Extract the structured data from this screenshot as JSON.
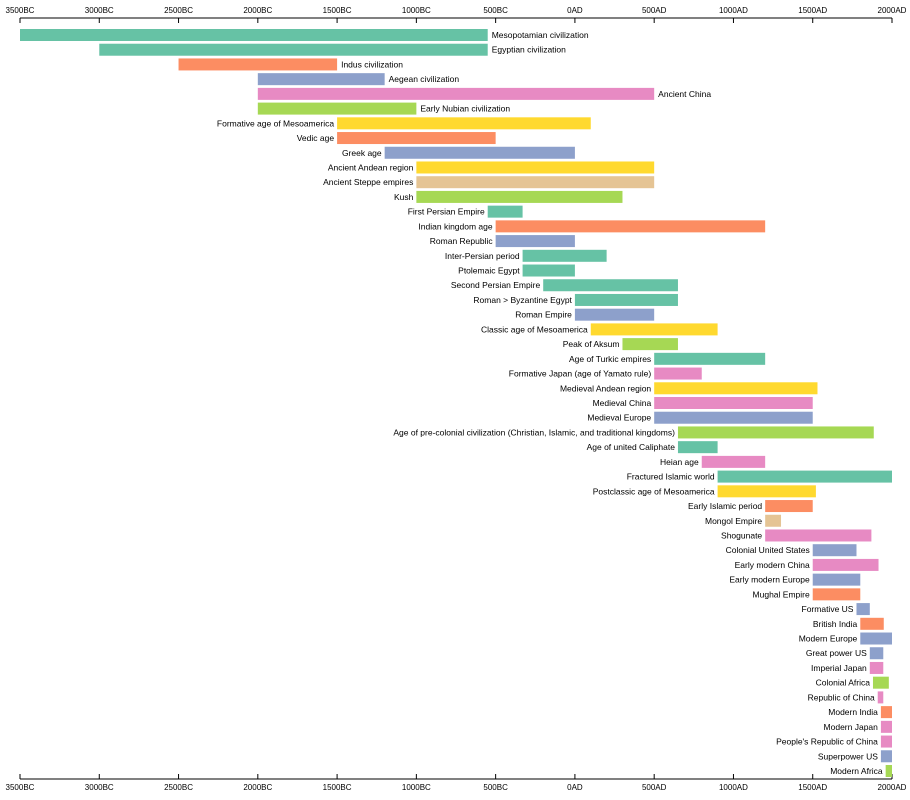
{
  "chart_data": {
    "type": "timeline",
    "title": "",
    "xlim": [
      -3500,
      2000
    ],
    "tick_values": [
      -3500,
      -3000,
      -2500,
      -2000,
      -1500,
      -1000,
      -500,
      0,
      500,
      1000,
      1500,
      2000
    ],
    "tick_labels": [
      "3500BC",
      "3000BC",
      "2500BC",
      "2000BC",
      "1500BC",
      "1000BC",
      "500BC",
      "0AD",
      "500AD",
      "1000AD",
      "1500AD",
      "2000AD"
    ],
    "colors": {
      "teal": "#66c2a5",
      "orange": "#fc8d62",
      "blue": "#8da0cb",
      "pink": "#e78ac3",
      "green": "#a6d854",
      "yellow": "#ffd92f",
      "tan": "#e5c494"
    },
    "events": [
      {
        "name": "Mesopotamian civilization",
        "start": -3500,
        "end": -550,
        "color": "teal"
      },
      {
        "name": "Egyptian civilization",
        "start": -3000,
        "end": -550,
        "color": "teal"
      },
      {
        "name": "Indus civilization",
        "start": -2500,
        "end": -1500,
        "color": "orange"
      },
      {
        "name": "Aegean civilization",
        "start": -2000,
        "end": -1200,
        "color": "blue"
      },
      {
        "name": "Ancient China",
        "start": -2000,
        "end": 500,
        "color": "pink"
      },
      {
        "name": "Early Nubian civilization",
        "start": -2000,
        "end": -1000,
        "color": "green"
      },
      {
        "name": "Formative age of Mesoamerica",
        "start": -1500,
        "end": 100,
        "color": "yellow"
      },
      {
        "name": "Vedic age",
        "start": -1500,
        "end": -500,
        "color": "orange"
      },
      {
        "name": "Greek age",
        "start": -1200,
        "end": 0,
        "color": "blue"
      },
      {
        "name": "Ancient Andean region",
        "start": -1000,
        "end": 500,
        "color": "yellow"
      },
      {
        "name": "Ancient Steppe empires",
        "start": -1000,
        "end": 500,
        "color": "tan"
      },
      {
        "name": "Kush",
        "start": -1000,
        "end": 300,
        "color": "green"
      },
      {
        "name": "First Persian Empire",
        "start": -550,
        "end": -330,
        "color": "teal"
      },
      {
        "name": "Indian kingdom age",
        "start": -500,
        "end": 1200,
        "color": "orange"
      },
      {
        "name": "Roman Republic",
        "start": -500,
        "end": 0,
        "color": "blue"
      },
      {
        "name": "Inter-Persian period",
        "start": -330,
        "end": 200,
        "color": "teal"
      },
      {
        "name": "Ptolemaic Egypt",
        "start": -330,
        "end": 0,
        "color": "teal"
      },
      {
        "name": "Second Persian Empire",
        "start": -200,
        "end": 650,
        "color": "teal"
      },
      {
        "name": "Roman > Byzantine Egypt",
        "start": 0,
        "end": 650,
        "color": "teal"
      },
      {
        "name": "Roman Empire",
        "start": 0,
        "end": 500,
        "color": "blue"
      },
      {
        "name": "Classic age of Mesoamerica",
        "start": 100,
        "end": 900,
        "color": "yellow"
      },
      {
        "name": "Peak of Aksum",
        "start": 300,
        "end": 650,
        "color": "green"
      },
      {
        "name": "Age of Turkic empires",
        "start": 500,
        "end": 1200,
        "color": "teal"
      },
      {
        "name": "Formative Japan (age of Yamato rule)",
        "start": 500,
        "end": 800,
        "color": "pink"
      },
      {
        "name": "Medieval Andean region",
        "start": 500,
        "end": 1530,
        "color": "yellow"
      },
      {
        "name": "Medieval China",
        "start": 500,
        "end": 1500,
        "color": "pink"
      },
      {
        "name": "Medieval Europe",
        "start": 500,
        "end": 1500,
        "color": "blue"
      },
      {
        "name": "Age of pre-colonial civilization (Christian, Islamic, and traditional kingdoms)",
        "start": 650,
        "end": 1885,
        "color": "green"
      },
      {
        "name": "Age of united Caliphate",
        "start": 650,
        "end": 900,
        "color": "teal"
      },
      {
        "name": "Heian age",
        "start": 800,
        "end": 1200,
        "color": "pink"
      },
      {
        "name": "Fractured Islamic world",
        "start": 900,
        "end": 2000,
        "color": "teal"
      },
      {
        "name": "Postclassic age of Mesoamerica",
        "start": 900,
        "end": 1520,
        "color": "yellow"
      },
      {
        "name": "Early Islamic period",
        "start": 1200,
        "end": 1500,
        "color": "orange"
      },
      {
        "name": "Mongol Empire",
        "start": 1200,
        "end": 1300,
        "color": "tan"
      },
      {
        "name": "Shogunate",
        "start": 1200,
        "end": 1870,
        "color": "pink"
      },
      {
        "name": "Colonial United States",
        "start": 1500,
        "end": 1776,
        "color": "blue"
      },
      {
        "name": "Early modern China",
        "start": 1500,
        "end": 1915,
        "color": "pink"
      },
      {
        "name": "Early modern Europe",
        "start": 1500,
        "end": 1800,
        "color": "blue"
      },
      {
        "name": "Mughal Empire",
        "start": 1500,
        "end": 1800,
        "color": "orange"
      },
      {
        "name": "Formative US",
        "start": 1776,
        "end": 1860,
        "color": "blue"
      },
      {
        "name": "British India",
        "start": 1800,
        "end": 1948,
        "color": "orange"
      },
      {
        "name": "Modern Europe",
        "start": 1800,
        "end": 2000,
        "color": "blue"
      },
      {
        "name": "Great power US",
        "start": 1860,
        "end": 1945,
        "color": "blue"
      },
      {
        "name": "Imperial Japan",
        "start": 1860,
        "end": 1945,
        "color": "pink"
      },
      {
        "name": "Colonial Africa",
        "start": 1880,
        "end": 1980,
        "color": "green"
      },
      {
        "name": "Republic of China",
        "start": 1910,
        "end": 1945,
        "color": "pink"
      },
      {
        "name": "Modern India",
        "start": 1930,
        "end": 2000,
        "color": "orange"
      },
      {
        "name": "Modern Japan",
        "start": 1930,
        "end": 2000,
        "color": "pink"
      },
      {
        "name": "People's Republic of China",
        "start": 1930,
        "end": 2000,
        "color": "pink"
      },
      {
        "name": "Superpower US",
        "start": 1930,
        "end": 2000,
        "color": "blue"
      },
      {
        "name": "Modern Africa",
        "start": 1960,
        "end": 2000,
        "color": "green"
      }
    ]
  }
}
